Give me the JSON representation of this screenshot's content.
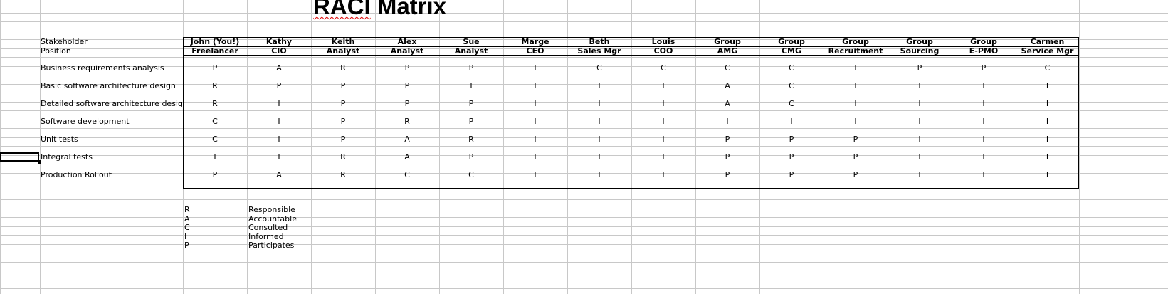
{
  "sheet": {
    "title": "RACI Matrix",
    "row_labels": {
      "stakeholder": "Stakeholder",
      "position": "Position"
    },
    "stakeholders": [
      {
        "name": "John (You!)",
        "position": "Freelancer"
      },
      {
        "name": "Kathy",
        "position": "CIO"
      },
      {
        "name": "Keith",
        "position": "Analyst"
      },
      {
        "name": "Alex",
        "position": "Analyst"
      },
      {
        "name": "Sue",
        "position": "Analyst"
      },
      {
        "name": "Marge",
        "position": "CEO"
      },
      {
        "name": "Beth",
        "position": "Sales Mgr"
      },
      {
        "name": "Louis",
        "position": "COO"
      },
      {
        "name": "Group",
        "position": "AMG"
      },
      {
        "name": "Group",
        "position": "CMG"
      },
      {
        "name": "Group",
        "position": "Recruitment"
      },
      {
        "name": "Group",
        "position": "Sourcing"
      },
      {
        "name": "Group",
        "position": "E-PMO"
      },
      {
        "name": "Carmen",
        "position": "Service Mgr"
      }
    ],
    "tasks": [
      {
        "label": "Business requirements analysis",
        "values": [
          "P",
          "A",
          "R",
          "P",
          "P",
          "I",
          "C",
          "C",
          "C",
          "C",
          "I",
          "P",
          "P",
          "C"
        ]
      },
      {
        "label": "Basic software architecture design",
        "values": [
          "R",
          "P",
          "P",
          "P",
          "I",
          "I",
          "I",
          "I",
          "A",
          "C",
          "I",
          "I",
          "I",
          "I"
        ]
      },
      {
        "label": "Detailed software architecture desig",
        "values": [
          "R",
          "I",
          "P",
          "P",
          "P",
          "I",
          "I",
          "I",
          "A",
          "C",
          "I",
          "I",
          "I",
          "I"
        ]
      },
      {
        "label": "Software development",
        "values": [
          "C",
          "I",
          "P",
          "R",
          "P",
          "I",
          "I",
          "I",
          "I",
          "I",
          "I",
          "I",
          "I",
          "I"
        ]
      },
      {
        "label": "Unit tests",
        "values": [
          "C",
          "I",
          "P",
          "A",
          "R",
          "I",
          "I",
          "I",
          "P",
          "P",
          "P",
          "I",
          "I",
          "I"
        ]
      },
      {
        "label": "Integral tests",
        "values": [
          "I",
          "I",
          "R",
          "A",
          "P",
          "I",
          "I",
          "I",
          "P",
          "P",
          "P",
          "I",
          "I",
          "I"
        ]
      },
      {
        "label": "Production Rollout",
        "values": [
          "P",
          "A",
          "R",
          "C",
          "C",
          "I",
          "I",
          "I",
          "P",
          "P",
          "P",
          "I",
          "I",
          "I"
        ]
      }
    ],
    "legend": [
      {
        "code": "R",
        "meaning": "Responsible"
      },
      {
        "code": "A",
        "meaning": "Accountable"
      },
      {
        "code": "C",
        "meaning": "Consulted"
      },
      {
        "code": "I",
        "meaning": "Informed"
      },
      {
        "code": "P",
        "meaning": "Participates"
      }
    ]
  }
}
